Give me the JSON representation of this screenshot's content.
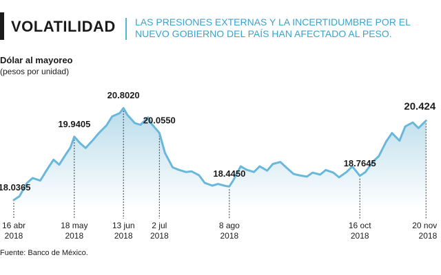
{
  "header": {
    "title": "VOLATILIDAD",
    "subtitle": "LAS PRESIONES EXTERNAS Y LA INCERTIDUMBRE POR EL NUEVO GOBIERNO DEL PAÍS HAN AFECTADO AL PESO."
  },
  "source": "Fuente: Banco de México.",
  "colors": {
    "line": "#6ab7dc",
    "area_top": "#b9dcea",
    "area_bottom": "#ffffff",
    "title_text": "#1a1a1a",
    "subtitle_text": "#3aa3cb"
  },
  "chart_data": {
    "type": "area",
    "title": "Dólar al mayoreo",
    "ylabel": "(pesos por unidad)",
    "xlabel": "",
    "grid": false,
    "ylim": [
      17.85,
      20.95
    ],
    "xlim": [
      "2018-04-16",
      "2018-11-21"
    ],
    "series": [
      {
        "x": [
          "2018-04-16",
          "2018-04-19",
          "2018-04-23",
          "2018-04-26",
          "2018-04-30",
          "2018-05-03",
          "2018-05-07",
          "2018-05-10",
          "2018-05-14",
          "2018-05-16",
          "2018-05-18",
          "2018-05-21",
          "2018-05-24",
          "2018-05-28",
          "2018-05-31",
          "2018-06-04",
          "2018-06-07",
          "2018-06-11",
          "2018-06-13",
          "2018-06-15",
          "2018-06-19",
          "2018-06-22",
          "2018-06-26",
          "2018-06-28",
          "2018-07-02",
          "2018-07-05",
          "2018-07-09",
          "2018-07-12",
          "2018-07-16",
          "2018-07-19",
          "2018-07-23",
          "2018-07-26",
          "2018-07-30",
          "2018-08-02",
          "2018-08-06",
          "2018-08-08",
          "2018-08-10",
          "2018-08-14",
          "2018-08-17",
          "2018-08-21",
          "2018-08-24",
          "2018-08-28",
          "2018-08-31",
          "2018-09-04",
          "2018-09-07",
          "2018-09-11",
          "2018-09-14",
          "2018-09-18",
          "2018-09-21",
          "2018-09-25",
          "2018-09-28",
          "2018-10-02",
          "2018-10-05",
          "2018-10-09",
          "2018-10-12",
          "2018-10-16",
          "2018-10-19",
          "2018-10-23",
          "2018-10-26",
          "2018-10-30",
          "2018-11-02",
          "2018-11-06",
          "2018-11-09",
          "2018-11-13",
          "2018-11-16",
          "2018-11-20"
        ],
        "values": [
          18.0365,
          18.15,
          18.55,
          18.7,
          18.62,
          18.9,
          19.25,
          19.1,
          19.45,
          19.62,
          19.9405,
          19.75,
          19.6,
          19.85,
          20.05,
          20.28,
          20.55,
          20.65,
          20.802,
          20.6,
          20.35,
          20.3,
          20.52,
          20.32,
          20.055,
          19.45,
          19.02,
          18.95,
          18.88,
          18.9,
          18.78,
          18.55,
          18.47,
          18.52,
          18.46,
          18.445,
          18.62,
          19.05,
          18.95,
          18.88,
          19.05,
          18.92,
          19.12,
          19.18,
          19.02,
          18.82,
          18.78,
          18.74,
          18.86,
          18.8,
          18.94,
          18.86,
          18.72,
          18.88,
          19.05,
          18.7645,
          18.88,
          19.2,
          19.35,
          19.8,
          20.05,
          19.82,
          20.25,
          20.37,
          20.2,
          20.424
        ]
      }
    ],
    "annotations": [
      {
        "x": "2018-04-16",
        "label": "18.0365"
      },
      {
        "x": "2018-05-18",
        "label": "19.9405"
      },
      {
        "x": "2018-06-13",
        "label": "20.8020"
      },
      {
        "x": "2018-07-02",
        "label": "20.0550"
      },
      {
        "x": "2018-08-08",
        "label": "18.4450"
      },
      {
        "x": "2018-10-16",
        "label": "18.7645"
      },
      {
        "x": "2018-11-20",
        "label": "20.424"
      }
    ],
    "tick_labels": [
      {
        "x": "2018-04-16",
        "line1": "16 abr",
        "line2": "2018"
      },
      {
        "x": "2018-05-18",
        "line1": "18 may",
        "line2": "2018"
      },
      {
        "x": "2018-06-13",
        "line1": "13 jun",
        "line2": "2018"
      },
      {
        "x": "2018-07-02",
        "line1": "2 jul",
        "line2": "2018"
      },
      {
        "x": "2018-08-08",
        "line1": "8 ago",
        "line2": "2018"
      },
      {
        "x": "2018-10-16",
        "line1": "16 oct",
        "line2": "2018"
      },
      {
        "x": "2018-11-20",
        "line1": "20 nov",
        "line2": "2018"
      }
    ]
  }
}
